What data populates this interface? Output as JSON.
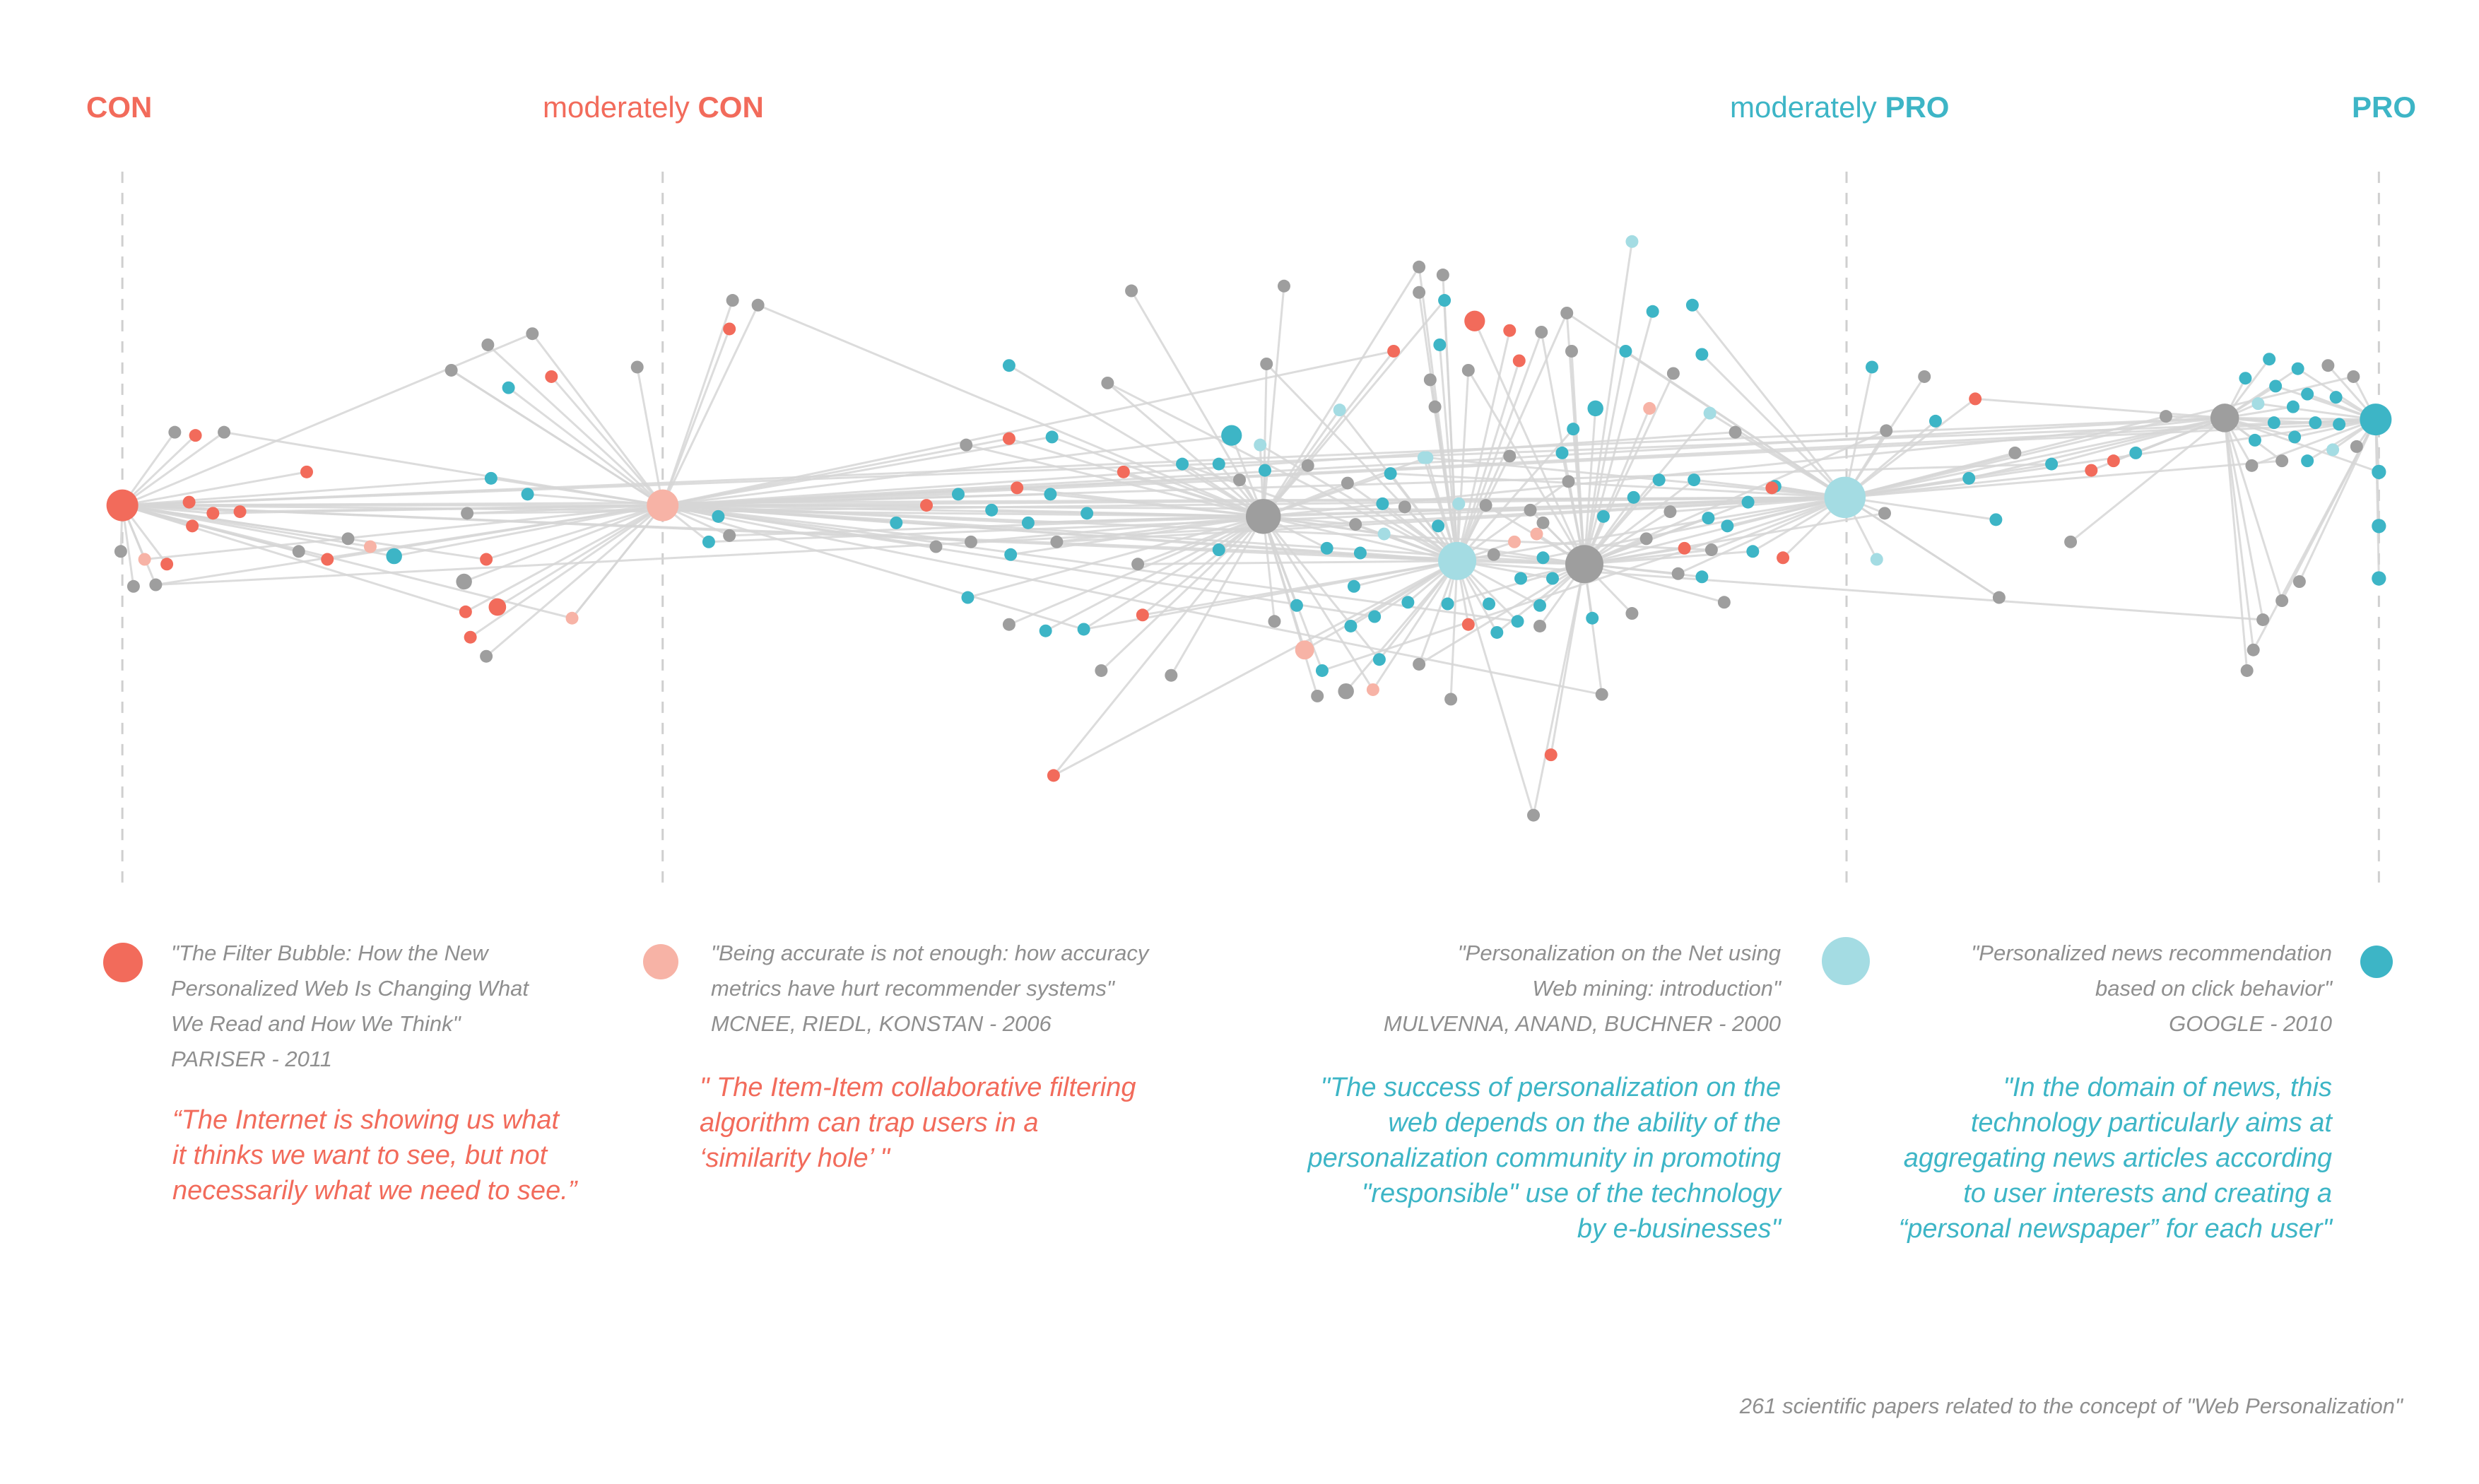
{
  "colors": {
    "con": "#F26B5B",
    "moderately_con": "#F7B3A6",
    "moderately_pro": "#A4DCE3",
    "pro": "#3DB5C6",
    "neutral": "#9E9E9E",
    "edge": "#D6D6D6",
    "axis": "#CFCFCF"
  },
  "headers": {
    "con": {
      "prefix": "",
      "strong": "CON"
    },
    "mod_con": {
      "prefix": "moderately ",
      "strong": "CON"
    },
    "mod_pro": {
      "prefix": "moderately ",
      "strong": "PRO"
    },
    "pro": {
      "prefix": "",
      "strong": "PRO"
    }
  },
  "papers": [
    {
      "id": "con",
      "title": "\"The Filter Bubble: How the New\nPersonalized Web Is Changing What\nWe Read and How We Think\"",
      "authors": "PARISER - 2011",
      "quote": "“The Internet is showing us what\nit thinks we want to see, but not\nnecessarily what we need to see.”"
    },
    {
      "id": "mod_con",
      "title": "\"Being accurate is not enough: how accuracy\nmetrics have hurt recommender systems\"",
      "authors": "MCNEE, RIEDL, KONSTAN - 2006",
      "quote": "\" The Item-Item collaborative filtering\nalgorithm can trap users in a\n‘similarity hole’ \""
    },
    {
      "id": "mod_pro",
      "title": "\"Personalization on the Net using\nWeb mining: introduction\"",
      "authors": "MULVENNA, ANAND, BUCHNER - 2000",
      "quote": "\"The success of personalization on the\nweb depends on the ability of the\npersonalization community in promoting\n\"responsible\" use of the technology\nby e-businesses\""
    },
    {
      "id": "pro",
      "title": "\"Personalized news recommendation\nbased on click behavior\"",
      "authors": "GOOGLE - 2010",
      "quote": "\"In the domain of news, this\ntechnology particularly aims at\naggregating news articles according\nto user interests and creating a\n“personal newspaper” for each user\""
    }
  ],
  "footer": "261 scientific papers related to the concept of \"Web Personalization\"",
  "chart_data": {
    "type": "network",
    "categories": [
      "CON",
      "moderately CON",
      "moderately PRO",
      "PRO",
      "neutral"
    ],
    "node_count_label": 261
  }
}
